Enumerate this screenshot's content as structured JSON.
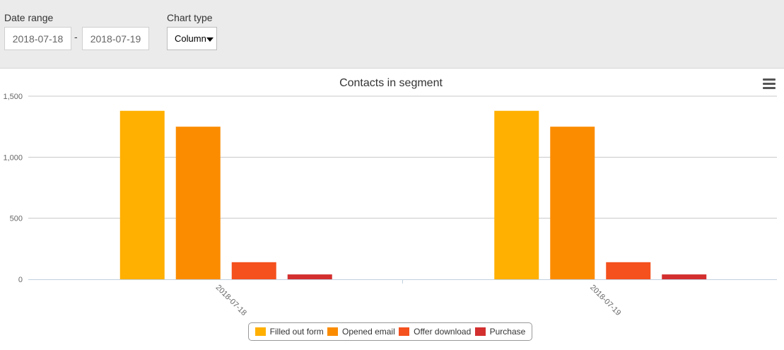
{
  "filters": {
    "date_range_label": "Date range",
    "date_from": "2018-07-18",
    "date_separator": "-",
    "date_to": "2018-07-19",
    "chart_type_label": "Chart type",
    "chart_type_value": "Column"
  },
  "colors": {
    "toolbar_bg": "#ebebeb",
    "grid": "#c8c8c8",
    "series": [
      "#ffb000",
      "#fb8c00",
      "#f4511e",
      "#d32f2f"
    ]
  },
  "icons": {
    "menu": "hamburger-menu-icon",
    "dropdown": "caret-down-icon"
  },
  "chart_data": {
    "type": "bar",
    "title": "Contacts in segment",
    "xlabel": "",
    "ylabel": "",
    "categories": [
      "2018-07-18",
      "2018-07-19"
    ],
    "series": [
      {
        "name": "Filled out form",
        "values": [
          1380,
          1380
        ]
      },
      {
        "name": "Opened email",
        "values": [
          1250,
          1250
        ]
      },
      {
        "name": "Offer download",
        "values": [
          140,
          140
        ]
      },
      {
        "name": "Purchase",
        "values": [
          40,
          40
        ]
      }
    ],
    "ylim": [
      0,
      1500
    ],
    "yticks": [
      0,
      500,
      1000,
      1500
    ],
    "ytick_labels": [
      "0",
      "500",
      "1,000",
      "1,500"
    ],
    "grid": true,
    "legend_position": "bottom-center"
  }
}
